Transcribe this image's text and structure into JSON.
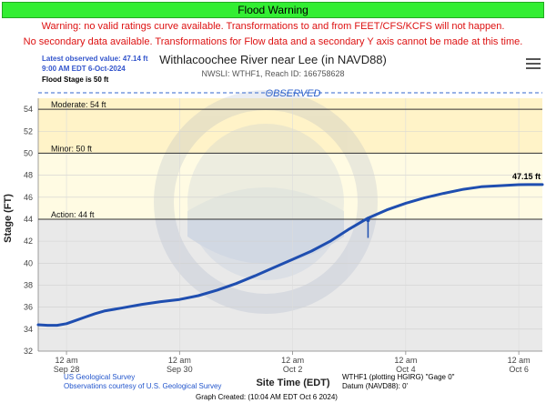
{
  "banner": {
    "text": "Flood Warning",
    "color": "#33ee33"
  },
  "warnings": {
    "line1": "Warning: no valid ratings curve available. Transformations to and from FEET/CFS/KCFS will not happen.",
    "line2": "No secondary data available. Transformations for Flow data and a secondary Y axis cannot be made at this time."
  },
  "info": {
    "latest": "Latest observed value: 47.14 ft",
    "time": "9:00 AM EDT 6-Oct-2024",
    "flood_stage": "Flood Stage is 50 ft"
  },
  "header": {
    "title": "Withlacoochee River near Lee (in NAVD88)",
    "subtitle": "NWSLI: WTHF1, Reach ID: 166758628",
    "menu_icon": "hamburger-menu-icon"
  },
  "footer": {
    "source1": "US Geological Survey",
    "source2": "Observations courtesy of U.S. Geological Survey",
    "gauge": "WTHF1 (plotting HGIRG) \"Gage 0\"",
    "datum": "Datum (NAVD88): 0'",
    "created": "Graph Created: (10:04 AM EDT Oct 6 2024)"
  },
  "chart_data": {
    "type": "line",
    "title": "Withlacoochee River near Lee (in NAVD88)",
    "xlabel": "Site Time (EDT)",
    "ylabel": "Stage (FT)",
    "ylim": [
      32,
      55
    ],
    "yticks": [
      32,
      34,
      36,
      38,
      40,
      42,
      44,
      46,
      48,
      50,
      52,
      54
    ],
    "grid": true,
    "section_label": "OBSERVED",
    "x_tick_labels": [
      {
        "t": 0,
        "time": "12 am",
        "date": "Sep 28"
      },
      {
        "t": 24,
        "time": "12 am",
        "date": "Sep 30"
      },
      {
        "t": 48,
        "time": "12 am",
        "date": "Oct 2"
      },
      {
        "t": 72,
        "time": "12 am",
        "date": "Oct 4"
      },
      {
        "t": 96,
        "time": "12 am",
        "date": "Oct 6"
      }
    ],
    "xlim": [
      -6,
      101
    ],
    "thresholds": [
      {
        "name": "Moderate: 54 ft",
        "value": 54,
        "color": "#fff3c8"
      },
      {
        "name": "Minor: 50 ft",
        "value": 50,
        "color": "#fffbe3"
      },
      {
        "name": "Action: 44 ft",
        "value": 44,
        "color": "#e9e9e9"
      }
    ],
    "series": [
      {
        "color": "#1f4eb0",
        "x": [
          -6,
          -4,
          -2,
          0,
          2,
          4,
          6,
          8,
          12,
          16,
          20,
          24,
          28,
          32,
          36,
          40,
          44,
          48,
          52,
          56,
          60,
          64,
          68,
          72,
          76,
          80,
          84,
          88,
          92,
          96,
          98,
          101
        ],
        "y": [
          34.4,
          34.35,
          34.35,
          34.5,
          34.8,
          35.1,
          35.4,
          35.65,
          35.95,
          36.25,
          36.5,
          36.7,
          37.05,
          37.55,
          38.15,
          38.85,
          39.6,
          40.35,
          41.1,
          42.0,
          43.1,
          44.1,
          44.85,
          45.45,
          45.95,
          46.35,
          46.7,
          46.95,
          47.05,
          47.14,
          47.15,
          47.15
        ]
      }
    ],
    "last_value_label": "47.15 ft",
    "marker": {
      "x": 64,
      "y": 43.1,
      "ymin": 42.3,
      "ymax": 43.9
    }
  }
}
